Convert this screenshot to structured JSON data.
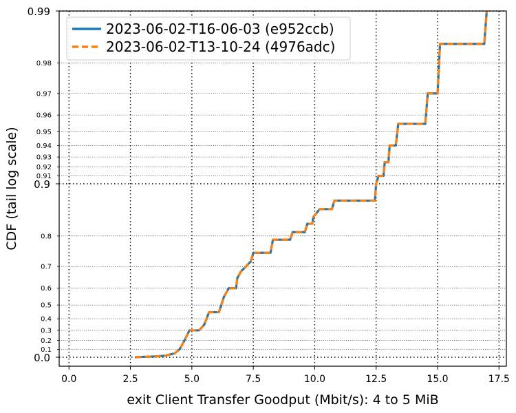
{
  "chart_data": {
    "type": "line",
    "xlabel": "exit Client Transfer Goodput (Mbit/s): 4 to 5 MiB",
    "ylabel": "CDF (tail log scale)",
    "xlim": [
      -0.4,
      17.8
    ],
    "x_ticks": [
      {
        "value": 0.0,
        "label": "0.0"
      },
      {
        "value": 2.5,
        "label": "2.5"
      },
      {
        "value": 5.0,
        "label": "5.0"
      },
      {
        "value": 7.5,
        "label": "7.5"
      },
      {
        "value": 10.0,
        "label": "10.0"
      },
      {
        "value": 12.5,
        "label": "12.5"
      },
      {
        "value": 15.0,
        "label": "15.0"
      },
      {
        "value": 17.5,
        "label": "17.5"
      }
    ],
    "y_scale": "tail log (-log10(1 - p))",
    "y_major_ticks": [
      {
        "value": 0.0,
        "label": "0.0"
      },
      {
        "value": 0.9,
        "label": "0.9"
      },
      {
        "value": 0.99,
        "label": "0.99"
      }
    ],
    "y_minor_ticks": [
      {
        "value": 0.1,
        "label": "0.1"
      },
      {
        "value": 0.2,
        "label": "0.2"
      },
      {
        "value": 0.3,
        "label": "0.3"
      },
      {
        "value": 0.4,
        "label": "0.4"
      },
      {
        "value": 0.5,
        "label": "0.5"
      },
      {
        "value": 0.6,
        "label": "0.6"
      },
      {
        "value": 0.7,
        "label": "0.7"
      },
      {
        "value": 0.8,
        "label": "0.8"
      },
      {
        "value": 0.91,
        "label": "0.91"
      },
      {
        "value": 0.92,
        "label": "0.92"
      },
      {
        "value": 0.93,
        "label": "0.93"
      },
      {
        "value": 0.94,
        "label": "0.94"
      },
      {
        "value": 0.95,
        "label": "0.95"
      },
      {
        "value": 0.96,
        "label": "0.96"
      },
      {
        "value": 0.97,
        "label": "0.97"
      },
      {
        "value": 0.98,
        "label": "0.98"
      }
    ],
    "grid": true,
    "legend_position": "top-left",
    "series": [
      {
        "name": "2023-06-02-T16-06-03 (e952ccb)",
        "color": "#1f77b4",
        "style": "solid",
        "points": [
          [
            2.7,
            0.0
          ],
          [
            3.0,
            0.005
          ],
          [
            3.5,
            0.01
          ],
          [
            3.9,
            0.02
          ],
          [
            4.3,
            0.05
          ],
          [
            4.5,
            0.1
          ],
          [
            4.6,
            0.15
          ],
          [
            4.7,
            0.2
          ],
          [
            4.8,
            0.25
          ],
          [
            4.9,
            0.3
          ],
          [
            5.3,
            0.3
          ],
          [
            5.5,
            0.35
          ],
          [
            5.6,
            0.4
          ],
          [
            5.7,
            0.45
          ],
          [
            6.1,
            0.45
          ],
          [
            6.2,
            0.5
          ],
          [
            6.3,
            0.55
          ],
          [
            6.5,
            0.6
          ],
          [
            6.8,
            0.6
          ],
          [
            6.85,
            0.65
          ],
          [
            7.0,
            0.68
          ],
          [
            7.2,
            0.7
          ],
          [
            7.4,
            0.72
          ],
          [
            7.5,
            0.75
          ],
          [
            8.2,
            0.75
          ],
          [
            8.3,
            0.79
          ],
          [
            9.0,
            0.79
          ],
          [
            9.1,
            0.81
          ],
          [
            9.6,
            0.81
          ],
          [
            9.7,
            0.83
          ],
          [
            9.9,
            0.83
          ],
          [
            9.95,
            0.845
          ],
          [
            10.2,
            0.86
          ],
          [
            10.7,
            0.86
          ],
          [
            10.8,
            0.875
          ],
          [
            12.45,
            0.875
          ],
          [
            12.5,
            0.9
          ],
          [
            12.6,
            0.91
          ],
          [
            12.8,
            0.91
          ],
          [
            12.85,
            0.925
          ],
          [
            13.0,
            0.925
          ],
          [
            13.05,
            0.94
          ],
          [
            13.3,
            0.94
          ],
          [
            13.4,
            0.955
          ],
          [
            14.5,
            0.955
          ],
          [
            14.6,
            0.97
          ],
          [
            15.0,
            0.97
          ],
          [
            15.1,
            0.9845
          ],
          [
            16.9,
            0.9845
          ],
          [
            17.0,
            0.99
          ]
        ]
      },
      {
        "name": "2023-06-02-T13-10-24 (4976adc)",
        "color": "#ff7f0e",
        "style": "dashed",
        "points": [
          [
            2.7,
            0.0
          ],
          [
            3.0,
            0.005
          ],
          [
            3.5,
            0.01
          ],
          [
            3.9,
            0.02
          ],
          [
            4.3,
            0.05
          ],
          [
            4.5,
            0.1
          ],
          [
            4.6,
            0.15
          ],
          [
            4.7,
            0.2
          ],
          [
            4.8,
            0.25
          ],
          [
            4.9,
            0.3
          ],
          [
            5.3,
            0.3
          ],
          [
            5.5,
            0.35
          ],
          [
            5.6,
            0.4
          ],
          [
            5.7,
            0.45
          ],
          [
            6.1,
            0.45
          ],
          [
            6.2,
            0.5
          ],
          [
            6.3,
            0.55
          ],
          [
            6.5,
            0.6
          ],
          [
            6.8,
            0.6
          ],
          [
            6.85,
            0.65
          ],
          [
            7.0,
            0.68
          ],
          [
            7.2,
            0.7
          ],
          [
            7.4,
            0.72
          ],
          [
            7.5,
            0.75
          ],
          [
            8.2,
            0.75
          ],
          [
            8.3,
            0.79
          ],
          [
            9.0,
            0.79
          ],
          [
            9.1,
            0.81
          ],
          [
            9.6,
            0.81
          ],
          [
            9.7,
            0.83
          ],
          [
            9.9,
            0.83
          ],
          [
            9.95,
            0.845
          ],
          [
            10.2,
            0.86
          ],
          [
            10.7,
            0.86
          ],
          [
            10.8,
            0.875
          ],
          [
            12.45,
            0.875
          ],
          [
            12.5,
            0.9
          ],
          [
            12.6,
            0.91
          ],
          [
            12.8,
            0.91
          ],
          [
            12.85,
            0.925
          ],
          [
            13.0,
            0.925
          ],
          [
            13.05,
            0.94
          ],
          [
            13.3,
            0.94
          ],
          [
            13.4,
            0.955
          ],
          [
            14.5,
            0.955
          ],
          [
            14.6,
            0.97
          ],
          [
            15.0,
            0.97
          ],
          [
            15.1,
            0.9845
          ],
          [
            16.9,
            0.9845
          ],
          [
            17.0,
            0.99
          ]
        ]
      }
    ]
  }
}
